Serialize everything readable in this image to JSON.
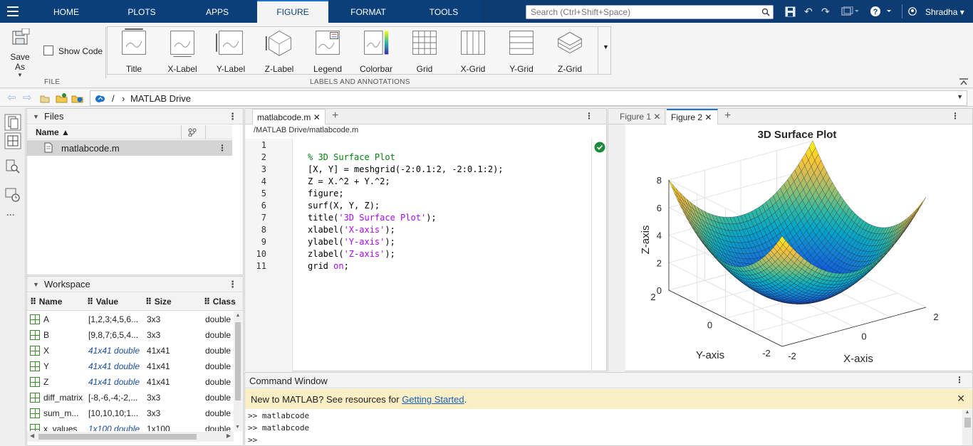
{
  "toolstrip": {
    "tabs": [
      "HOME",
      "PLOTS",
      "APPS",
      "FIGURE",
      "FORMAT",
      "TOOLS"
    ],
    "active_tab": "FIGURE",
    "search_placeholder": "Search (Ctrl+Shift+Space)",
    "user": "Shradha"
  },
  "ribbon": {
    "save_as": "Save As",
    "show_code": "Show Code",
    "file_group": "FILE",
    "annotation_buttons": [
      "Title",
      "X-Label",
      "Y-Label",
      "Z-Label",
      "Legend",
      "Colorbar",
      "Grid",
      "X-Grid",
      "Y-Grid",
      "Z-Grid"
    ],
    "annotation_group": "LABELS AND ANNOTATIONS"
  },
  "address": {
    "sep": "/",
    "path": "MATLAB Drive"
  },
  "files": {
    "title": "Files",
    "col_name": "Name",
    "items": [
      {
        "name": "matlabcode.m"
      }
    ]
  },
  "workspace": {
    "title": "Workspace",
    "columns": [
      "Name",
      "Value",
      "Size",
      "Class"
    ],
    "rows": [
      {
        "name": "A",
        "value": "[1,2,3;4,5,6...",
        "size": "3x3",
        "class": "double",
        "italic": false
      },
      {
        "name": "B",
        "value": "[9,8,7;6,5,4...",
        "size": "3x3",
        "class": "double",
        "italic": false
      },
      {
        "name": "X",
        "value": "41x41 double",
        "size": "41x41",
        "class": "double",
        "italic": true
      },
      {
        "name": "Y",
        "value": "41x41 double",
        "size": "41x41",
        "class": "double",
        "italic": true
      },
      {
        "name": "Z",
        "value": "41x41 double",
        "size": "41x41",
        "class": "double",
        "italic": true
      },
      {
        "name": "diff_matrix",
        "value": "[-8,-6,-4;-2,...",
        "size": "3x3",
        "class": "double",
        "italic": false
      },
      {
        "name": "sum_m...",
        "value": "[10,10,10;1...",
        "size": "3x3",
        "class": "double",
        "italic": false
      },
      {
        "name": "x_values",
        "value": "1x100 double",
        "size": "1x100",
        "class": "double",
        "italic": true
      }
    ]
  },
  "editor": {
    "tab": "matlabcode.m",
    "path": "/MATLAB Drive/matlabcode.m",
    "lines": [
      [],
      [
        {
          "t": "% 3D Surface Plot",
          "c": "#028009"
        }
      ],
      [
        {
          "t": "[X, Y] = meshgrid(-2:0.1:2, -2:0.1:2);",
          "c": "#000000"
        }
      ],
      [
        {
          "t": "Z = X.^2 + Y.^2;",
          "c": "#000000"
        }
      ],
      [
        {
          "t": "figure;",
          "c": "#000000"
        }
      ],
      [
        {
          "t": "surf(X, Y, Z);",
          "c": "#000000"
        }
      ],
      [
        {
          "t": "title(",
          "c": "#000000"
        },
        {
          "t": "'3D Surface Plot'",
          "c": "#a709f5"
        },
        {
          "t": ");",
          "c": "#000000"
        }
      ],
      [
        {
          "t": "xlabel(",
          "c": "#000000"
        },
        {
          "t": "'X-axis'",
          "c": "#a709f5"
        },
        {
          "t": ");",
          "c": "#000000"
        }
      ],
      [
        {
          "t": "ylabel(",
          "c": "#000000"
        },
        {
          "t": "'Y-axis'",
          "c": "#a709f5"
        },
        {
          "t": ");",
          "c": "#000000"
        }
      ],
      [
        {
          "t": "zlabel(",
          "c": "#000000"
        },
        {
          "t": "'Z-axis'",
          "c": "#a709f5"
        },
        {
          "t": ");",
          "c": "#000000"
        }
      ],
      [
        {
          "t": "grid ",
          "c": "#000000"
        },
        {
          "t": "on",
          "c": "#a709f5"
        },
        {
          "t": ";",
          "c": "#000000"
        }
      ]
    ]
  },
  "figures": {
    "tabs": [
      "Figure 1",
      "Figure 2"
    ],
    "active": "Figure 2"
  },
  "chart_data": {
    "type": "surface",
    "title": "3D Surface Plot",
    "xlabel": "X-axis",
    "ylabel": "Y-axis",
    "zlabel": "Z-axis",
    "x": {
      "min": -2,
      "max": 2,
      "step": 0.1
    },
    "y": {
      "min": -2,
      "max": 2,
      "step": 0.1
    },
    "z_function": "Z = X.^2 + Y.^2",
    "xticks": [
      "-2",
      "0",
      "2"
    ],
    "yticks": [
      "-2",
      "0",
      "2"
    ],
    "zticks": [
      "0",
      "2",
      "4",
      "6",
      "8"
    ],
    "zlim": [
      0,
      8
    ],
    "grid": true,
    "colormap": "parula"
  },
  "command_window": {
    "title": "Command Window",
    "banner_text": "New to MATLAB? See resources for ",
    "banner_link": "Getting Started",
    "banner_end": ".",
    "lines": [
      ">> matlabcode",
      ">> matlabcode",
      ">>"
    ]
  },
  "colors": {
    "toolstrip_bg": "#0b3f7a",
    "banner_bg": "#fbefc5",
    "link": "#1a5fb4",
    "comment": "#028009",
    "string": "#a709f5"
  }
}
